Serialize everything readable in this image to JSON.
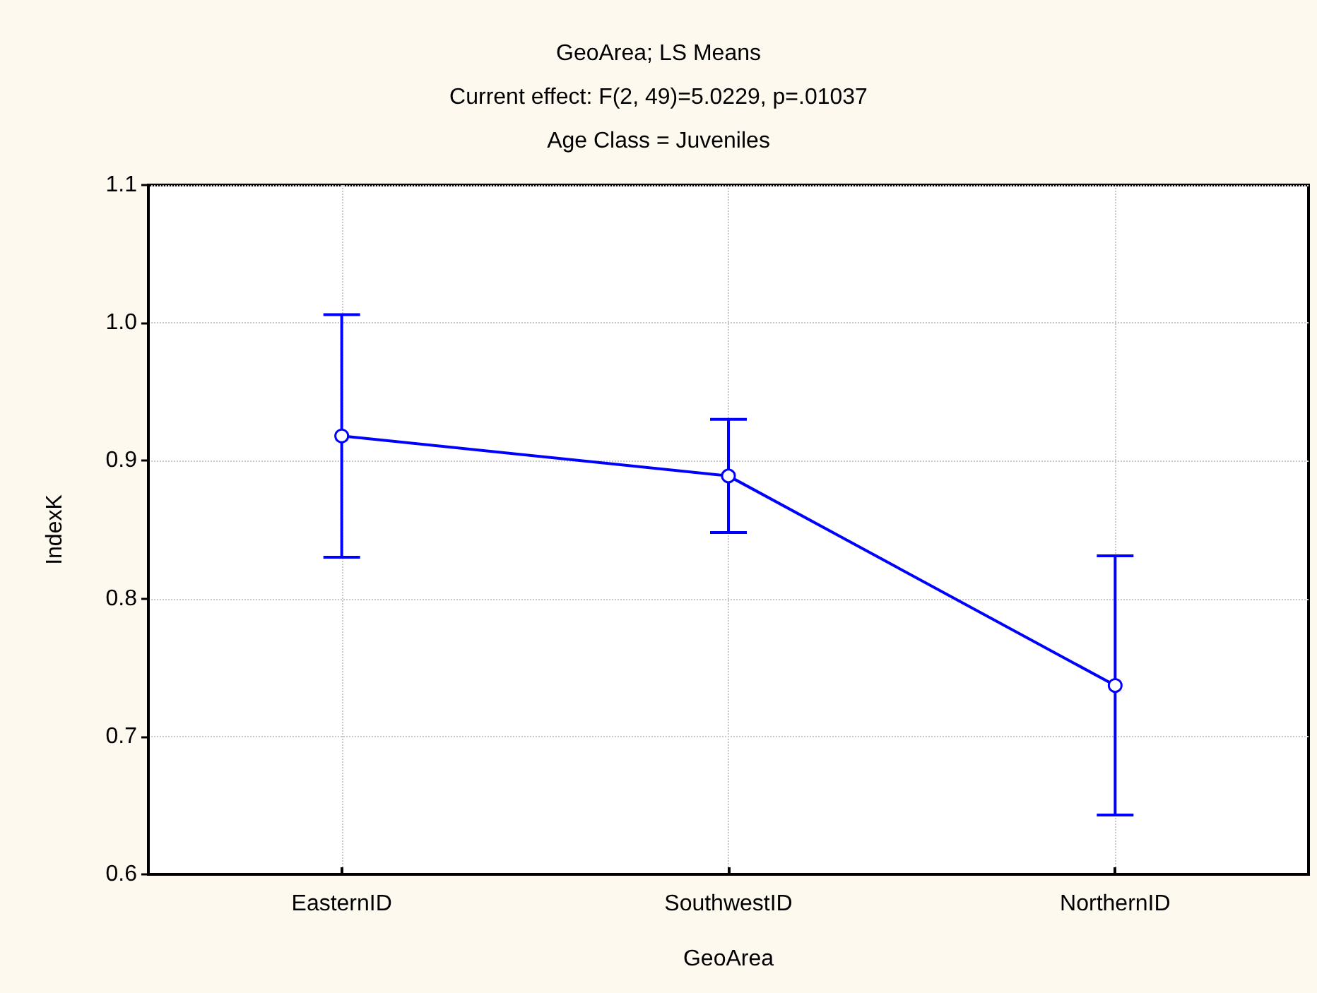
{
  "chart_data": {
    "type": "line",
    "title": "GeoArea; LS Means",
    "subtitle": "Current effect: F(2, 49)=5.0229, p=.01037",
    "annotations": [
      "Age Class = Juveniles"
    ],
    "xlabel": "GeoArea",
    "ylabel": "IndexK",
    "categories": [
      "EasternID",
      "SouthwestID",
      "NorthernID"
    ],
    "values": [
      0.918,
      0.889,
      0.737
    ],
    "errors": [
      0.088,
      0.041,
      0.094
    ],
    "color": "#0000ff",
    "ylim": [
      0.6,
      1.1
    ],
    "yticks": [
      0.6,
      0.7,
      0.8,
      0.9,
      {
        "value": 1.0,
        "label": "1.0"
      },
      1.1
    ],
    "grid": true,
    "marker": "circle"
  }
}
